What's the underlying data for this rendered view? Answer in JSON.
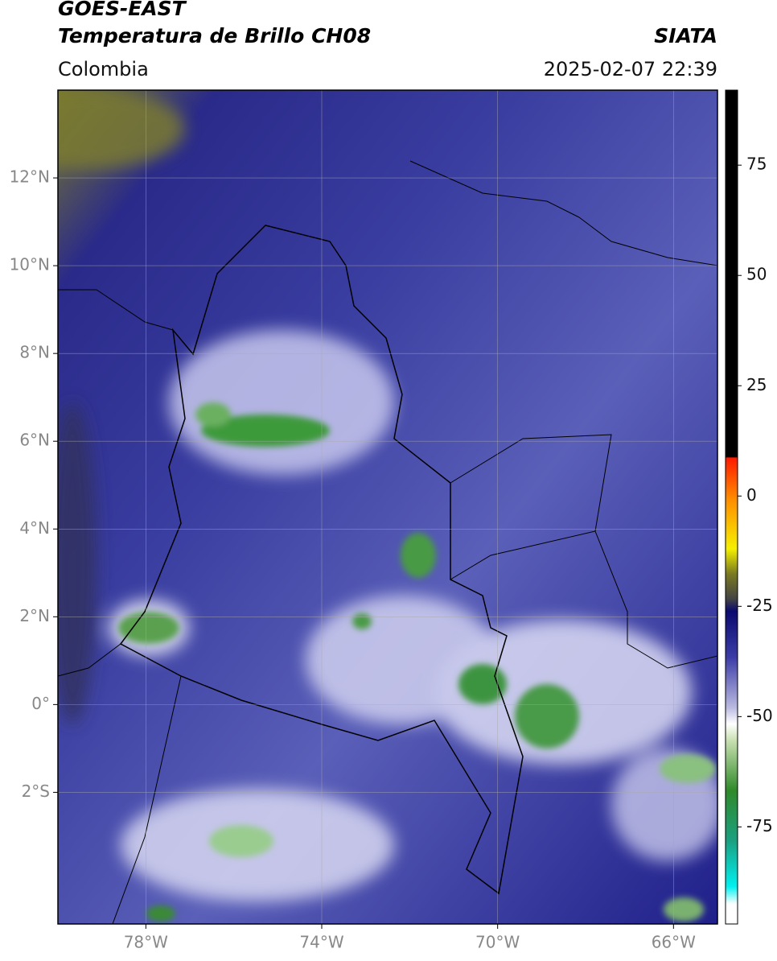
{
  "header": {
    "title": "GOES-EAST",
    "subtitle": "Temperatura de Brillo CH08",
    "region": "Colombia",
    "source": "SIATA",
    "timestamp": "2025-02-07 22:39"
  },
  "map": {
    "lonlim": [
      -80,
      -65
    ],
    "latlim": [
      -5,
      14
    ],
    "grid": true,
    "lonticks": [
      {
        "value": -78,
        "label": "78°W"
      },
      {
        "value": -74,
        "label": "74°W"
      },
      {
        "value": -70,
        "label": "70°W"
      },
      {
        "value": -66,
        "label": "66°W"
      }
    ],
    "latticks": [
      {
        "value": 12,
        "label": "12°N"
      },
      {
        "value": 10,
        "label": "10°N"
      },
      {
        "value": 8,
        "label": "8°N"
      },
      {
        "value": 6,
        "label": "6°N"
      },
      {
        "value": 4,
        "label": "4°N"
      },
      {
        "value": 2,
        "label": "2°N"
      },
      {
        "value": 0,
        "label": "0°"
      },
      {
        "value": -2,
        "label": "2°S"
      }
    ]
  },
  "colorbar": {
    "lim": [
      -97,
      92
    ],
    "ticks": [
      75,
      50,
      25,
      0,
      -25,
      -50,
      -75
    ]
  }
}
